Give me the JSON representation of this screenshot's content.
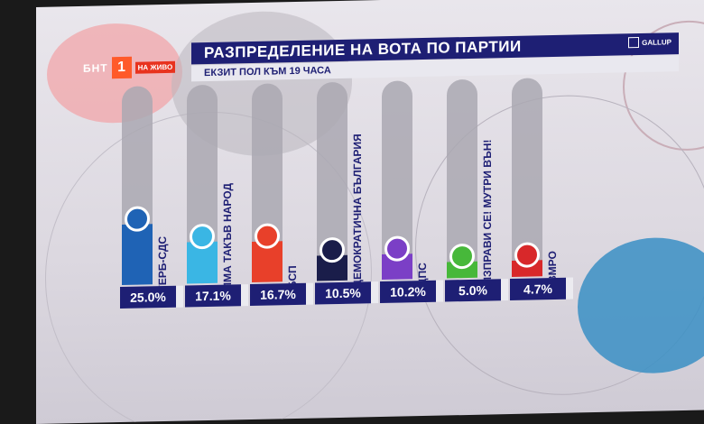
{
  "broadcaster": {
    "name": "БНТ",
    "channel": "1",
    "live_label": "НА ЖИВО",
    "accent": "#ff5a2a"
  },
  "header": {
    "title": "РАЗПРЕДЕЛЕНИЕ НА ВОТА ПО ПАРТИИ",
    "subtitle": "ЕКЗИТ ПОЛ КЪМ 19 ЧАСА",
    "source": "GALLUP",
    "bar_color": "#1e1f74"
  },
  "chart_data": {
    "type": "bar",
    "title": "РАЗПРЕДЕЛЕНИЕ НА ВОТА ПО ПАРТИИ",
    "subtitle": "ЕКЗИТ ПОЛ КЪМ 19 ЧАСА",
    "unit": "%",
    "categories": [
      "ГЕРБ-СДС",
      "ИМА ТАКЪВ НАРОД",
      "БСП",
      "ДЕМОКРАТИЧНА БЪЛГАРИЯ",
      "ДПС",
      "ИЗПРАВИ СЕ! МУТРИ ВЪН!",
      "ВМРО"
    ],
    "values": [
      25.0,
      17.1,
      16.7,
      10.5,
      10.2,
      5.0,
      4.7
    ],
    "value_labels": [
      "25.0%",
      "17.1%",
      "16.7%",
      "10.5%",
      "10.2%",
      "5.0%",
      "4.7%"
    ],
    "colors": [
      "#1f63b5",
      "#3ab6e4",
      "#e8402a",
      "#1a1d4a",
      "#7b3fc6",
      "#47b83a",
      "#d8282a"
    ],
    "ylim": [
      0,
      25
    ]
  }
}
